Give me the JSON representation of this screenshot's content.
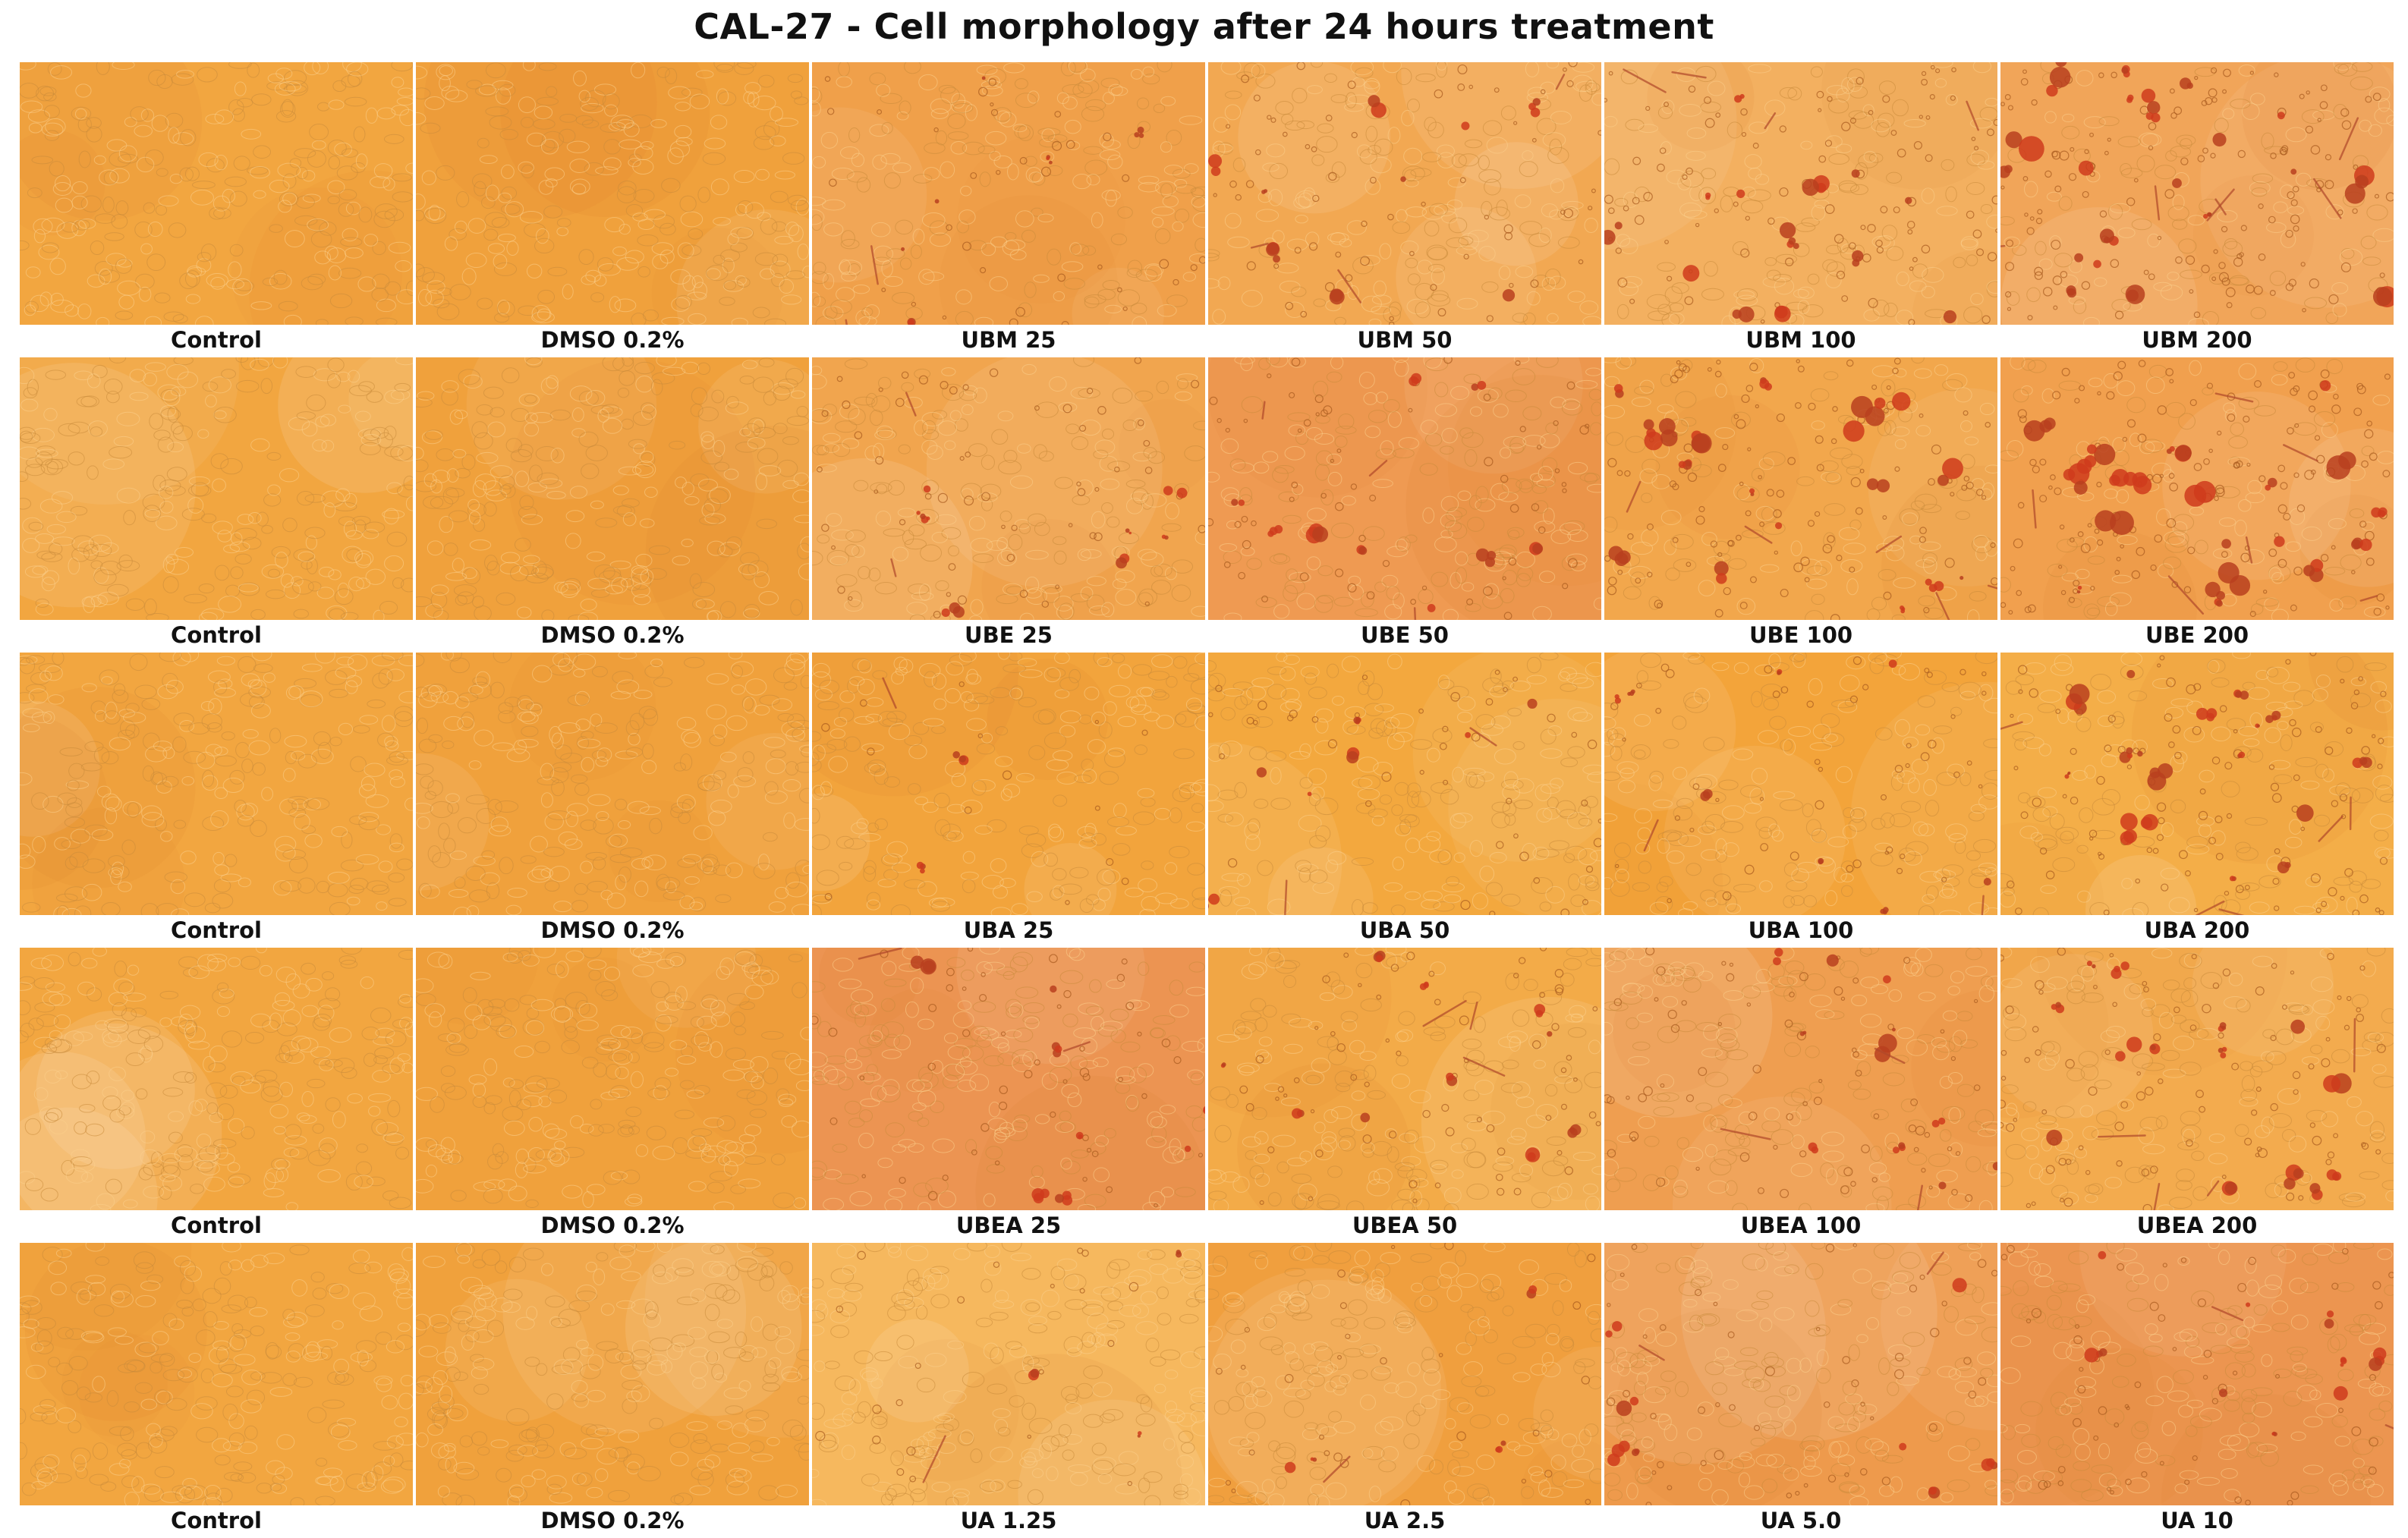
{
  "title": "CAL-27 - Cell morphology after 24 hours treatment",
  "rows": [
    {
      "panels": [
        {
          "label": "Control",
          "tint": "#f2a640",
          "damage": 0
        },
        {
          "label": "DMSO 0.2%",
          "tint": "#f0a13c",
          "damage": 0
        },
        {
          "label": "UBM 25",
          "tint": "#f0a04a",
          "damage": 0.25
        },
        {
          "label": "UBM 50",
          "tint": "#f2a852",
          "damage": 0.45
        },
        {
          "label": "UBM 100",
          "tint": "#f3b060",
          "damage": 0.7
        },
        {
          "label": "UBM 200",
          "tint": "#f1a559",
          "damage": 1.0
        }
      ]
    },
    {
      "panels": [
        {
          "label": "Control",
          "tint": "#f2a640",
          "damage": 0
        },
        {
          "label": "DMSO 0.2%",
          "tint": "#f0a13c",
          "damage": 0
        },
        {
          "label": "UBE 25",
          "tint": "#f1a54e",
          "damage": 0.4
        },
        {
          "label": "UBE 50",
          "tint": "#ef9a52",
          "damage": 0.45
        },
        {
          "label": "UBE 100",
          "tint": "#f2a74c",
          "damage": 0.8
        },
        {
          "label": "UBE 200",
          "tint": "#f1a04e",
          "damage": 1.0
        }
      ]
    },
    {
      "panels": [
        {
          "label": "Control",
          "tint": "#f2a640",
          "damage": 0
        },
        {
          "label": "DMSO 0.2%",
          "tint": "#f0a13c",
          "damage": 0
        },
        {
          "label": "UBA 25",
          "tint": "#f2a43c",
          "damage": 0.1
        },
        {
          "label": "UBA 50",
          "tint": "#f3a83e",
          "damage": 0.3
        },
        {
          "label": "UBA 100",
          "tint": "#f3a43a",
          "damage": 0.35
        },
        {
          "label": "UBA 200",
          "tint": "#f4ae48",
          "damage": 0.75
        }
      ]
    },
    {
      "panels": [
        {
          "label": "Control",
          "tint": "#f2a640",
          "damage": 0
        },
        {
          "label": "DMSO 0.2%",
          "tint": "#f0a13c",
          "damage": 0
        },
        {
          "label": "UBEA 25",
          "tint": "#ec9452",
          "damage": 0.35
        },
        {
          "label": "UBEA 50",
          "tint": "#f3ab48",
          "damage": 0.45
        },
        {
          "label": "UBEA 100",
          "tint": "#ef9e50",
          "damage": 0.5
        },
        {
          "label": "UBEA 200",
          "tint": "#f3ab4e",
          "damage": 0.65
        }
      ]
    },
    {
      "panels": [
        {
          "label": "Control",
          "tint": "#f2a640",
          "damage": 0
        },
        {
          "label": "DMSO 0.2%",
          "tint": "#f0a13c",
          "damage": 0
        },
        {
          "label": "UA 1.25",
          "tint": "#f6b85e",
          "damage": 0.15
        },
        {
          "label": "UA 2.5",
          "tint": "#f09f3e",
          "damage": 0.2
        },
        {
          "label": "UA 5.0",
          "tint": "#ee9a4c",
          "damage": 0.35
        },
        {
          "label": "UA 10",
          "tint": "#ec9550",
          "damage": 0.4
        }
      ]
    }
  ]
}
